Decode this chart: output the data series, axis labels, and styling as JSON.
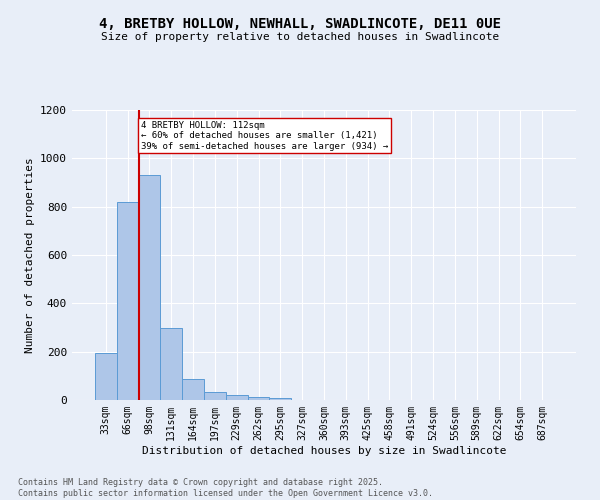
{
  "title": "4, BRETBY HOLLOW, NEWHALL, SWADLINCOTE, DE11 0UE",
  "subtitle": "Size of property relative to detached houses in Swadlincote",
  "xlabel": "Distribution of detached houses by size in Swadlincote",
  "ylabel": "Number of detached properties",
  "footer": "Contains HM Land Registry data © Crown copyright and database right 2025.\nContains public sector information licensed under the Open Government Licence v3.0.",
  "bin_labels": [
    "33sqm",
    "66sqm",
    "98sqm",
    "131sqm",
    "164sqm",
    "197sqm",
    "229sqm",
    "262sqm",
    "295sqm",
    "327sqm",
    "360sqm",
    "393sqm",
    "425sqm",
    "458sqm",
    "491sqm",
    "524sqm",
    "556sqm",
    "589sqm",
    "622sqm",
    "654sqm",
    "687sqm"
  ],
  "bar_values": [
    195,
    820,
    930,
    300,
    85,
    35,
    20,
    12,
    8,
    0,
    0,
    0,
    0,
    0,
    0,
    0,
    0,
    0,
    0,
    0,
    0
  ],
  "bar_color": "#aec6e8",
  "bar_edge_color": "#5b9bd5",
  "vline_x_bin": 2,
  "vline_color": "#cc0000",
  "annotation_text": "4 BRETBY HOLLOW: 112sqm\n← 60% of detached houses are smaller (1,421)\n39% of semi-detached houses are larger (934) →",
  "vline_color_box": "#cc0000",
  "ylim": [
    0,
    1200
  ],
  "yticks": [
    0,
    200,
    400,
    600,
    800,
    1000,
    1200
  ],
  "background_color": "#e8eef8",
  "plot_background": "#e8eef8",
  "title_fontsize": 10,
  "subtitle_fontsize": 8,
  "ylabel_fontsize": 8,
  "xlabel_fontsize": 8,
  "tick_fontsize": 7,
  "footer_fontsize": 6
}
